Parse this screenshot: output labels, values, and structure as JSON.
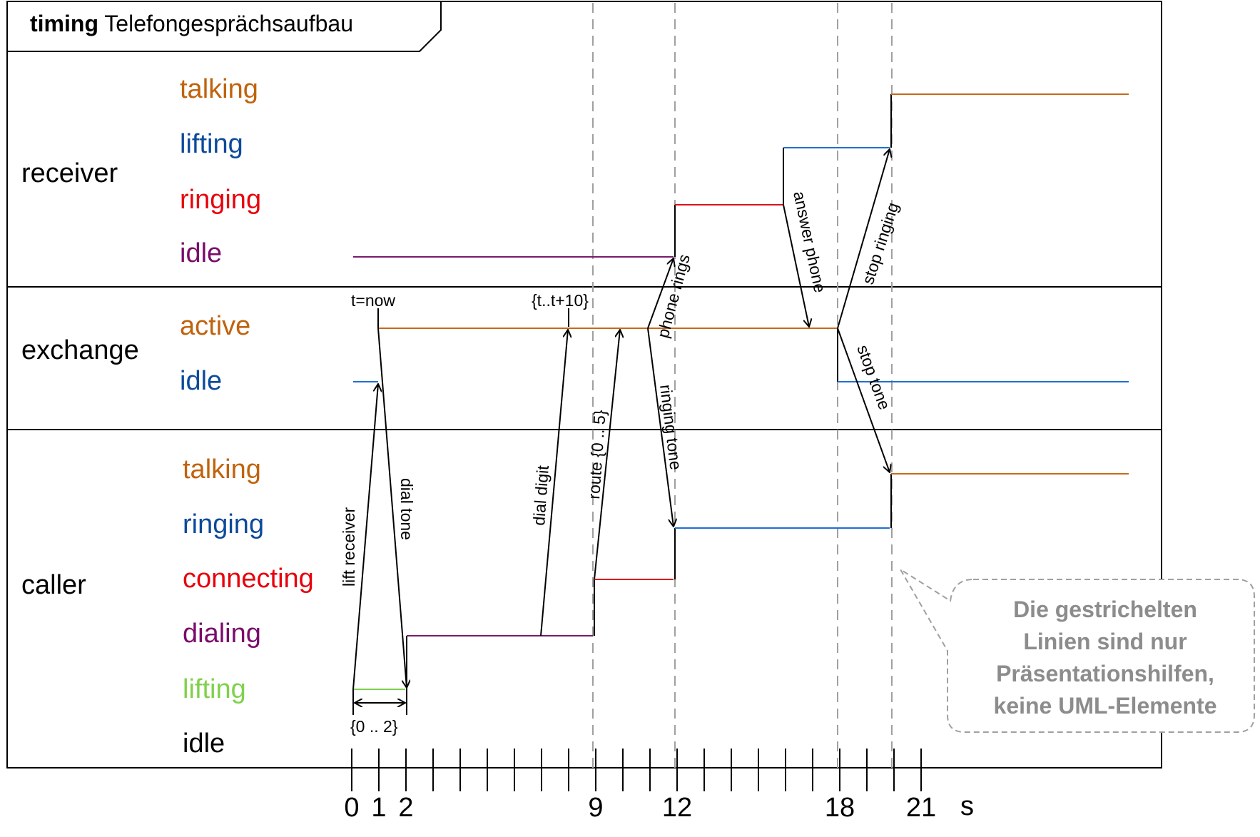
{
  "frame": {
    "keyword": "timing",
    "name": "Telefongesprächsaufbau"
  },
  "colors": {
    "orange": "#c0630d",
    "blue": "#0c4a9a",
    "red": "#e8000b",
    "purple": "#7a0b6b",
    "green": "#7fd14a",
    "black": "#000000",
    "line_orange": "#c56a1a",
    "line_blue": "#1f6fd1",
    "line_red": "#d9121a",
    "line_purple": "#7a1a6b",
    "dashed": "#a0a0a0",
    "note_text": "#8c8c8c"
  },
  "lifelines": {
    "receiver": {
      "name": "receiver",
      "states": [
        {
          "label": "talking",
          "color": "orange"
        },
        {
          "label": "lifting",
          "color": "blue"
        },
        {
          "label": "ringing",
          "color": "red"
        },
        {
          "label": "idle",
          "color": "purple"
        }
      ]
    },
    "exchange": {
      "name": "exchange",
      "states": [
        {
          "label": "active",
          "color": "orange"
        },
        {
          "label": "idle",
          "color": "blue"
        }
      ]
    },
    "caller": {
      "name": "caller",
      "states": [
        {
          "label": "talking",
          "color": "orange"
        },
        {
          "label": "ringing",
          "color": "blue"
        },
        {
          "label": "connecting",
          "color": "red"
        },
        {
          "label": "dialing",
          "color": "purple"
        },
        {
          "label": "lifting",
          "color": "green"
        },
        {
          "label": "idle",
          "color": "black"
        }
      ]
    }
  },
  "messages": {
    "lift_receiver": "lift receiver",
    "dial_tone": "dial tone",
    "dial_digit": "dial digit",
    "route": "route {0 .. 5}",
    "ringing_tone": "ringing tone",
    "phone_rings": "phone rings",
    "answer_phone": "answer phone",
    "stop_ringing": "stop ringing",
    "stop_tone": "stop tone"
  },
  "constraints": {
    "t_now": "t=now",
    "t_window": "{t..t+10}",
    "lift_duration": "{0 .. 2}"
  },
  "time_axis": {
    "labels": [
      {
        "value": 0,
        "text": "0"
      },
      {
        "value": 1,
        "text": "1"
      },
      {
        "value": 2,
        "text": "2"
      },
      {
        "value": 9,
        "text": "9"
      },
      {
        "value": 12,
        "text": "12"
      },
      {
        "value": 18,
        "text": "18"
      },
      {
        "value": 21,
        "text": "21"
      }
    ],
    "unit": "s",
    "tick_count": 22
  },
  "note": {
    "lines": [
      "Die gestrichelten",
      "Linien sind  nur",
      "Präsentationshilfen,",
      "keine UML-Elemente"
    ]
  }
}
